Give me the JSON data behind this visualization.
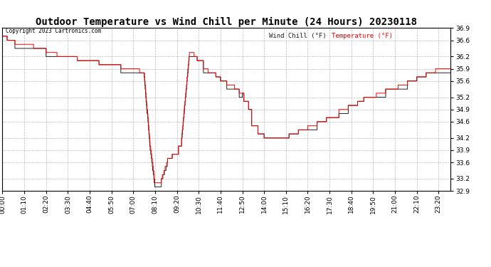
{
  "title": "Outdoor Temperature vs Wind Chill per Minute (24 Hours) 20230118",
  "copyright": "Copyright 2023 Cartronics.com",
  "legend_wind_chill": "Wind Chill (°F)",
  "legend_temperature": "Temperature (°F)",
  "wind_chill_color": "#222222",
  "temperature_color": "red",
  "ymin": 32.9,
  "ymax": 36.9,
  "yticks": [
    32.9,
    33.2,
    33.6,
    33.9,
    34.2,
    34.6,
    34.9,
    35.2,
    35.6,
    35.9,
    36.2,
    36.6,
    36.9
  ],
  "background_color": "#ffffff",
  "grid_color": "#aaaaaa",
  "title_fontsize": 10,
  "tick_fontsize": 6.5
}
